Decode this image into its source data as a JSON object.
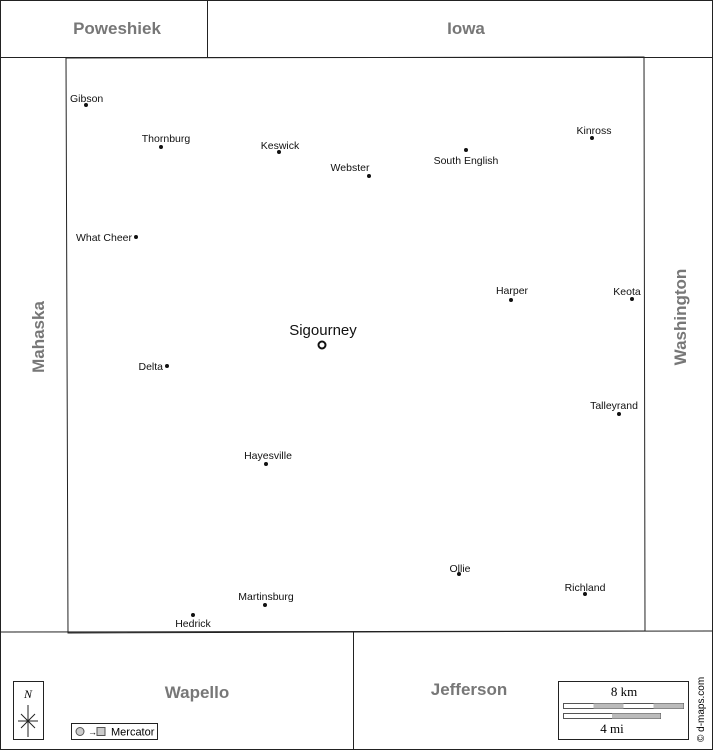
{
  "neighbors": [
    "Poweshiek",
    "Iowa",
    "Mahaska",
    "Washington",
    "Wapello",
    "Jefferson"
  ],
  "county_seat": "Sigourney",
  "towns": [
    "Gibson",
    "Thornburg",
    "Keswick",
    "Webster",
    "South English",
    "Kinross",
    "What Cheer",
    "Harper",
    "Keota",
    "Delta",
    "Talleyrand",
    "Hayesville",
    "Ollie",
    "Richland",
    "Martinsburg",
    "Hedrick"
  ],
  "scale": {
    "km": "8 km",
    "mi": "4 mi"
  },
  "compass": "N",
  "projection": "Mercator",
  "credit": "© d-maps.com"
}
